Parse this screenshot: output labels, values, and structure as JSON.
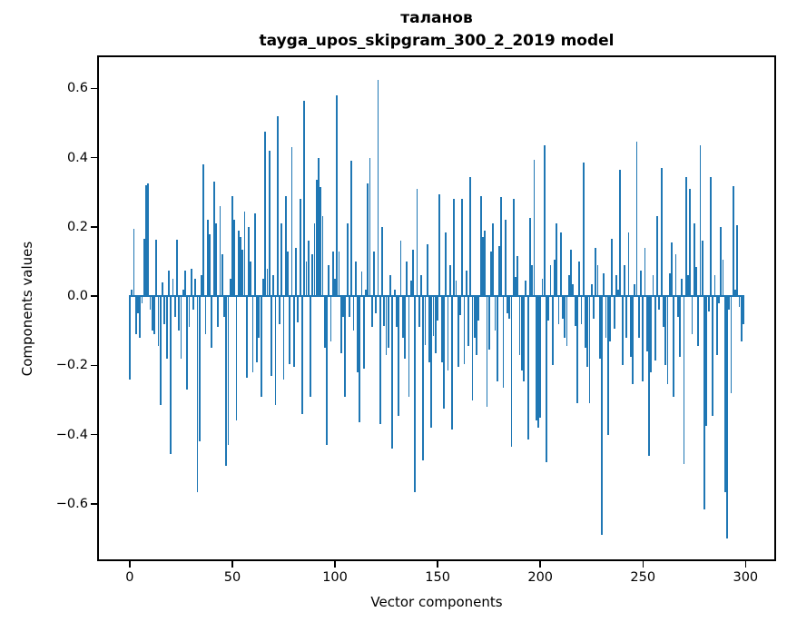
{
  "title": {
    "line1": "таланов",
    "line2": "tayga_upos_skipgram_300_2_2019 model"
  },
  "chart_data": {
    "type": "bar",
    "title": "таланов\ntayga_upos_skipgram_300_2_2019 model",
    "xlabel": "Vector components",
    "ylabel": "Components values",
    "bar_color": "#1f77b4",
    "axis_color": "#000000",
    "background_color": "#ffffff",
    "grid": false,
    "legend": false,
    "xlim": [
      -15,
      314
    ],
    "ylim": [
      -0.76,
      0.69
    ],
    "xticks": [
      0,
      50,
      100,
      150,
      200,
      250,
      300
    ],
    "xtick_labels": [
      "0",
      "50",
      "100",
      "150",
      "200",
      "250",
      "300"
    ],
    "yticks": [
      0.6,
      0.4,
      0.2,
      0.0,
      -0.2,
      -0.4,
      -0.6
    ],
    "ytick_labels": [
      "0.6",
      "0.4",
      "0.2",
      "0.0",
      "−0.2",
      "−0.4",
      "−0.6"
    ],
    "x_start": 0,
    "n_bars": 300,
    "bar_width_data": 0.8,
    "values": [
      -0.24,
      0.02,
      0.195,
      -0.11,
      -0.05,
      -0.12,
      -0.02,
      0.165,
      0.32,
      0.325,
      -0.04,
      -0.1,
      -0.11,
      0.163,
      -0.145,
      -0.315,
      0.04,
      -0.08,
      -0.18,
      0.075,
      -0.455,
      0.05,
      -0.06,
      0.163,
      -0.1,
      -0.18,
      0.02,
      0.075,
      -0.27,
      -0.09,
      0.08,
      -0.04,
      0.05,
      -0.565,
      -0.42,
      0.06,
      0.38,
      -0.11,
      0.22,
      0.18,
      -0.15,
      0.33,
      0.21,
      -0.09,
      0.26,
      0.12,
      -0.06,
      -0.49,
      -0.43,
      0.05,
      0.29,
      0.22,
      -0.36,
      0.19,
      0.17,
      0.135,
      0.245,
      -0.235,
      0.2,
      0.1,
      -0.22,
      0.24,
      -0.19,
      -0.12,
      -0.29,
      0.05,
      0.475,
      0.08,
      0.42,
      -0.23,
      0.06,
      -0.315,
      0.52,
      -0.08,
      0.21,
      -0.24,
      0.29,
      0.13,
      -0.195,
      0.43,
      -0.205,
      0.14,
      -0.075,
      0.28,
      -0.34,
      0.565,
      0.1,
      0.16,
      -0.29,
      0.12,
      0.21,
      0.335,
      0.4,
      0.315,
      0.23,
      -0.15,
      -0.43,
      0.09,
      -0.13,
      0.13,
      0.05,
      0.58,
      0.13,
      -0.165,
      -0.06,
      -0.29,
      0.21,
      -0.06,
      0.39,
      -0.1,
      0.1,
      -0.22,
      -0.365,
      0.07,
      -0.21,
      0.02,
      0.325,
      0.4,
      -0.09,
      0.13,
      -0.05,
      0.625,
      -0.37,
      0.2,
      -0.085,
      -0.17,
      -0.15,
      0.06,
      -0.44,
      0.02,
      -0.09,
      -0.345,
      0.16,
      -0.12,
      -0.18,
      0.1,
      -0.29,
      0.045,
      0.135,
      -0.565,
      0.31,
      -0.09,
      0.06,
      -0.475,
      -0.14,
      0.15,
      -0.19,
      -0.38,
      -0.115,
      -0.165,
      -0.07,
      0.295,
      -0.19,
      -0.325,
      0.185,
      -0.215,
      0.09,
      -0.385,
      0.28,
      0.045,
      -0.205,
      -0.055,
      0.28,
      -0.195,
      0.075,
      -0.145,
      0.345,
      -0.3,
      -0.12,
      -0.17,
      -0.07,
      0.29,
      0.17,
      0.19,
      -0.32,
      -0.155,
      0.13,
      0.21,
      -0.1,
      -0.245,
      0.145,
      0.285,
      -0.265,
      0.22,
      -0.05,
      -0.065,
      -0.435,
      0.28,
      0.055,
      0.115,
      -0.17,
      -0.215,
      -0.245,
      0.045,
      -0.415,
      0.225,
      0.09,
      0.395,
      -0.36,
      -0.38,
      -0.35,
      0.05,
      0.435,
      -0.48,
      -0.07,
      0.09,
      -0.2,
      0.105,
      0.21,
      -0.08,
      0.185,
      -0.065,
      -0.12,
      -0.145,
      0.06,
      0.135,
      0.035,
      -0.085,
      -0.31,
      0.1,
      -0.08,
      0.385,
      -0.15,
      -0.205,
      -0.31,
      0.035,
      -0.065,
      0.14,
      0.09,
      -0.18,
      -0.69,
      0.065,
      -0.12,
      -0.4,
      -0.13,
      0.165,
      -0.095,
      0.06,
      0.02,
      0.365,
      -0.2,
      0.09,
      -0.12,
      0.185,
      -0.175,
      -0.255,
      0.035,
      0.445,
      -0.12,
      0.075,
      -0.245,
      0.14,
      -0.16,
      -0.46,
      -0.22,
      0.06,
      -0.185,
      0.23,
      -0.04,
      0.37,
      -0.09,
      -0.2,
      -0.255,
      0.065,
      0.155,
      -0.29,
      0.12,
      -0.06,
      -0.175,
      0.05,
      -0.485,
      0.345,
      0.06,
      0.31,
      -0.11,
      0.21,
      0.085,
      -0.145,
      0.435,
      0.16,
      -0.615,
      -0.375,
      -0.045,
      0.345,
      -0.345,
      0.06,
      -0.17,
      -0.02,
      0.2,
      0.105,
      -0.565,
      -0.7,
      -0.04,
      -0.28,
      0.317,
      0.02,
      0.205,
      -0.03,
      -0.13,
      -0.08
    ]
  }
}
